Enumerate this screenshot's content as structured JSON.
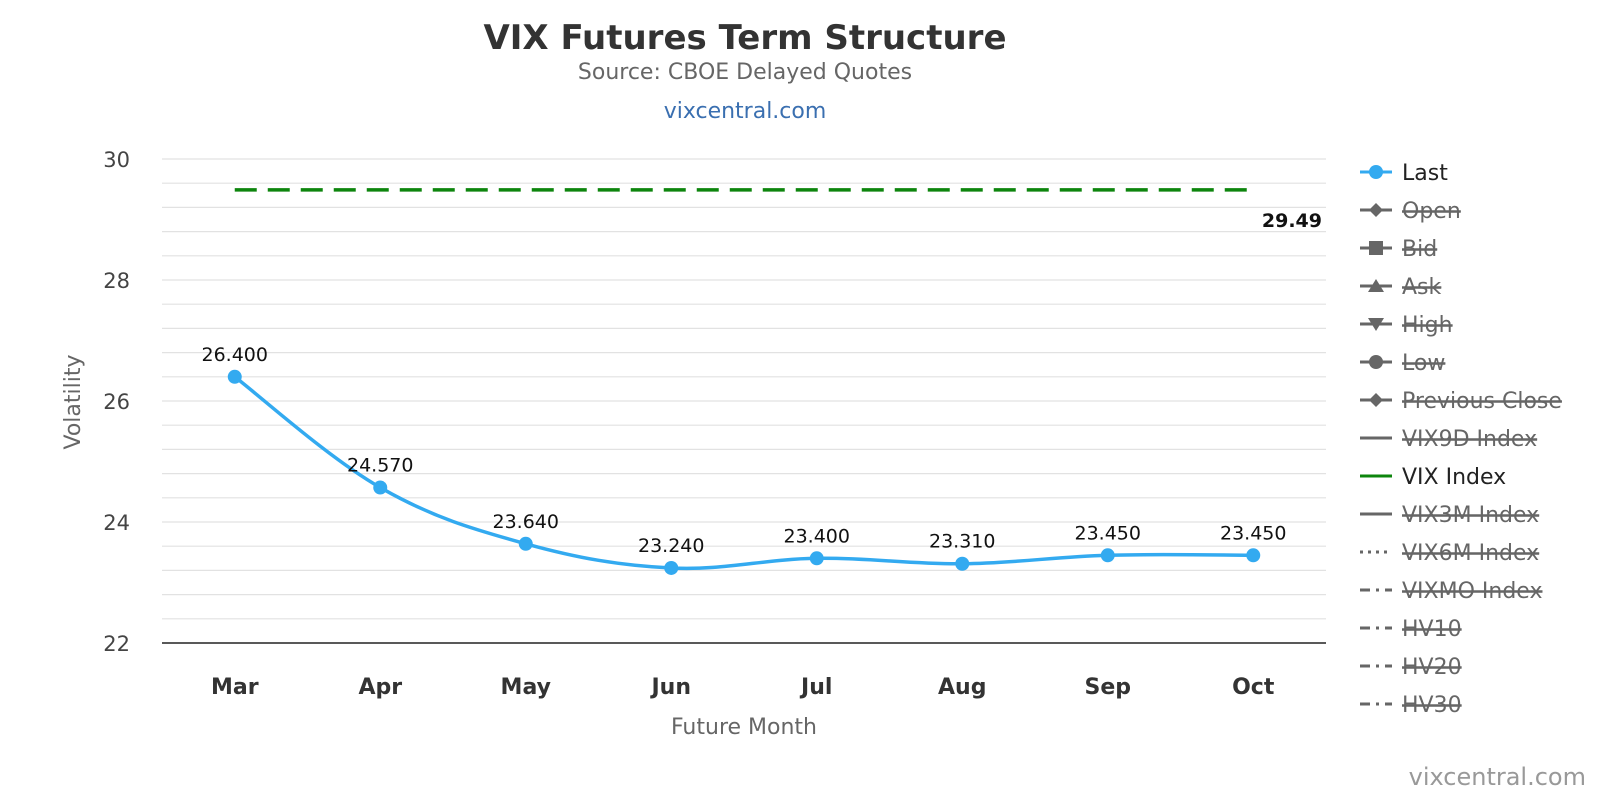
{
  "colors": {
    "last": "#33aaf0",
    "vix": "#0d850d",
    "hidden": "#666666",
    "grid": "#e2e2e2",
    "axis": "#222222"
  },
  "chart_data": {
    "type": "line",
    "title": "VIX Futures Term Structure",
    "subtitle": "Source: CBOE Delayed Quotes",
    "link": "vixcentral.com",
    "credit": "vixcentral.com",
    "xlabel": "Future Month",
    "ylabel": "Volatility",
    "ylim": [
      22,
      30
    ],
    "yticks": [
      "22",
      "24",
      "26",
      "28",
      "30"
    ],
    "grid": true,
    "legend_position": "right",
    "categories": [
      "Mar",
      "Apr",
      "May",
      "Jun",
      "Jul",
      "Aug",
      "Sep",
      "Oct"
    ],
    "series": [
      {
        "name": "Last",
        "values": [
          26.4,
          24.57,
          23.64,
          23.24,
          23.4,
          23.31,
          23.45,
          23.45
        ],
        "labels": [
          "26.400",
          "24.570",
          "23.640",
          "23.240",
          "23.400",
          "23.310",
          "23.450",
          "23.450"
        ],
        "visible": true,
        "style": "line-marker"
      },
      {
        "name": "VIX Index",
        "value": 29.49,
        "label": "29.49",
        "visible": true,
        "style": "dashed"
      }
    ],
    "legend": [
      {
        "name": "Last",
        "symbol": "circle-line",
        "visible": true
      },
      {
        "name": "Open",
        "symbol": "diamond",
        "visible": false
      },
      {
        "name": "Bid",
        "symbol": "square",
        "visible": false
      },
      {
        "name": "Ask",
        "symbol": "triangle",
        "visible": false
      },
      {
        "name": "High",
        "symbol": "triangle-down",
        "visible": false
      },
      {
        "name": "Low",
        "symbol": "circle",
        "visible": false
      },
      {
        "name": "Previous Close",
        "symbol": "diamond",
        "visible": false
      },
      {
        "name": "VIX9D Index",
        "symbol": "solid-line",
        "visible": false
      },
      {
        "name": "VIX Index",
        "symbol": "solid-line",
        "visible": true
      },
      {
        "name": "VIX3M Index",
        "symbol": "solid-line",
        "visible": false
      },
      {
        "name": "VIX6M Index",
        "symbol": "dotted-line",
        "visible": false
      },
      {
        "name": "VIXMO Index",
        "symbol": "dash-dot-line",
        "visible": false
      },
      {
        "name": "HV10",
        "symbol": "dash-dot-line",
        "visible": false
      },
      {
        "name": "HV20",
        "symbol": "dash-dot-line",
        "visible": false
      },
      {
        "name": "HV30",
        "symbol": "dash-dot-line",
        "visible": false
      }
    ]
  }
}
